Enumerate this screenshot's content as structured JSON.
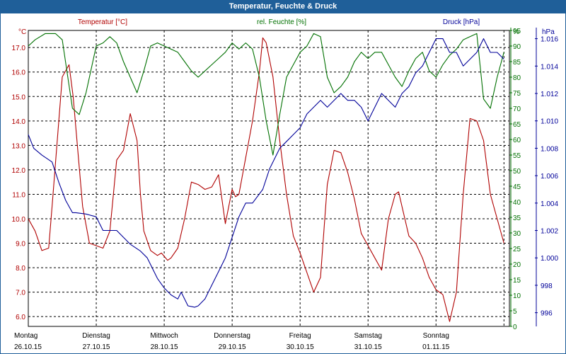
{
  "window": {
    "title": "Temperatur, Feuchte & Druck"
  },
  "colors": {
    "titlebar": "#1f5f99",
    "temperature": "#b00000",
    "humidity": "#007000",
    "pressure": "#000099",
    "grid": "#000000"
  },
  "chart_data": {
    "type": "line",
    "title": "Temperatur, Feuchte & Druck",
    "grid": true,
    "x_ticks": [
      {
        "day": "Montag",
        "date": "26.10.15"
      },
      {
        "day": "Dienstag",
        "date": "27.10.15"
      },
      {
        "day": "Mittwoch",
        "date": "28.10.15"
      },
      {
        "day": "Donnerstag",
        "date": "29.10.15"
      },
      {
        "day": "Freitag",
        "date": "30.10.15"
      },
      {
        "day": "Samstag",
        "date": "31.10.15"
      },
      {
        "day": "Sonntag",
        "date": "01.11.15"
      }
    ],
    "x_unit": "days",
    "x_range": [
      0,
      7.08
    ],
    "axes": {
      "temperature": {
        "label": "Temperatur [°C]",
        "unit": "°C",
        "ticks": [
          6.0,
          7.0,
          8.0,
          9.0,
          10.0,
          11.0,
          12.0,
          13.0,
          14.0,
          15.0,
          16.0,
          17.0
        ],
        "ylim": [
          5.6,
          17.7
        ],
        "position": "left"
      },
      "humidity": {
        "label": "rel. Feuchte [%]",
        "unit": "%",
        "ticks": [
          0,
          5,
          10,
          15,
          20,
          25,
          30,
          35,
          40,
          45,
          50,
          55,
          60,
          65,
          70,
          75,
          80,
          85,
          90,
          95
        ],
        "ylim": [
          0,
          95
        ],
        "position": "right-inner"
      },
      "pressure": {
        "label": "Druck [hPa]",
        "unit": "hPa",
        "ticks": [
          996,
          998,
          1.0,
          1.002,
          1.004,
          1.006,
          1.008,
          1.01,
          1.012,
          1.014,
          1.016
        ],
        "ylim": [
          995.0,
          1016.6
        ],
        "position": "right-outer"
      }
    },
    "series": [
      {
        "name": "Temperatur [°C]",
        "axis": "temperature",
        "x": [
          0,
          0.1,
          0.2,
          0.3,
          0.35,
          0.5,
          0.6,
          0.66,
          0.8,
          0.9,
          1.0,
          1.1,
          1.2,
          1.3,
          1.4,
          1.5,
          1.6,
          1.65,
          1.7,
          1.8,
          1.9,
          1.96,
          2.05,
          2.1,
          2.2,
          2.3,
          2.4,
          2.5,
          2.6,
          2.7,
          2.8,
          2.9,
          3.0,
          3.05,
          3.1,
          3.2,
          3.3,
          3.4,
          3.45,
          3.5,
          3.6,
          3.7,
          3.8,
          3.9,
          4.0,
          4.1,
          4.15,
          4.2,
          4.3,
          4.4,
          4.5,
          4.6,
          4.7,
          4.8,
          4.9,
          5.0,
          5.1,
          5.2,
          5.3,
          5.4,
          5.45,
          5.5,
          5.6,
          5.7,
          5.8,
          5.9,
          6.0,
          6.1,
          6.2,
          6.3,
          6.35,
          6.4,
          6.5,
          6.6,
          6.7,
          6.8,
          6.9,
          7.0
        ],
        "values": [
          10.0,
          9.5,
          8.7,
          8.8,
          10.5,
          15.8,
          16.3,
          15.0,
          10.5,
          9.0,
          8.9,
          8.8,
          9.5,
          12.4,
          12.8,
          14.3,
          13.2,
          11.0,
          9.5,
          8.7,
          8.5,
          8.6,
          8.3,
          8.4,
          8.8,
          10.0,
          11.5,
          11.4,
          11.2,
          11.3,
          11.8,
          9.8,
          11.2,
          10.9,
          11.0,
          12.5,
          14.0,
          16.0,
          17.4,
          17.2,
          15.8,
          13.2,
          11.0,
          9.3,
          8.6,
          7.8,
          7.4,
          7.0,
          7.6,
          11.4,
          12.8,
          12.7,
          11.9,
          10.8,
          9.4,
          8.9,
          8.4,
          7.9,
          10.0,
          11.0,
          11.1,
          10.5,
          9.3,
          9.0,
          8.4,
          7.6,
          7.1,
          6.9,
          5.8,
          7.0,
          9.0,
          11.0,
          14.1,
          14.0,
          13.2,
          11.0,
          10.0,
          9.0
        ]
      },
      {
        "name": "rel. Feuchte [%]",
        "axis": "humidity",
        "x": [
          0,
          0.1,
          0.25,
          0.4,
          0.5,
          0.65,
          0.75,
          0.85,
          1.0,
          1.1,
          1.2,
          1.3,
          1.4,
          1.5,
          1.6,
          1.7,
          1.8,
          1.9,
          2.0,
          2.1,
          2.2,
          2.3,
          2.4,
          2.5,
          2.6,
          2.7,
          2.75,
          2.8,
          2.9,
          3.0,
          3.1,
          3.2,
          3.3,
          3.4,
          3.5,
          3.6,
          3.7,
          3.8,
          3.9,
          4.0,
          4.1,
          4.2,
          4.3,
          4.4,
          4.5,
          4.6,
          4.7,
          4.8,
          4.9,
          5.0,
          5.1,
          5.2,
          5.3,
          5.4,
          5.5,
          5.6,
          5.7,
          5.8,
          5.9,
          6.0,
          6.1,
          6.2,
          6.3,
          6.4,
          6.5,
          6.6,
          6.7,
          6.8,
          6.9,
          7.0
        ],
        "values": [
          90,
          92,
          94,
          94,
          92,
          70,
          68,
          75,
          90,
          91,
          93,
          91,
          85,
          80,
          75,
          82,
          90,
          91,
          90,
          89,
          88,
          85,
          82,
          80,
          82,
          84,
          85,
          86,
          88,
          91,
          89,
          91,
          89,
          80,
          66,
          55,
          68,
          80,
          84,
          88,
          90,
          94,
          93,
          80,
          75,
          77,
          80,
          85,
          88,
          86,
          88,
          88,
          84,
          80,
          77,
          82,
          86,
          88,
          82,
          80,
          84,
          87,
          89,
          92,
          93,
          94,
          73,
          70,
          80,
          88
        ]
      },
      {
        "name": "Druck [hPa]",
        "axis": "pressure",
        "x": [
          0,
          0.08,
          0.2,
          0.35,
          0.45,
          0.55,
          0.65,
          0.7,
          0.85,
          1.0,
          1.05,
          1.1,
          1.2,
          1.3,
          1.4,
          1.5,
          1.65,
          1.75,
          1.8,
          1.9,
          2.0,
          2.1,
          2.2,
          2.25,
          2.35,
          2.45,
          2.5,
          2.6,
          2.7,
          2.8,
          2.9,
          3.0,
          3.1,
          3.2,
          3.3,
          3.45,
          3.55,
          3.7,
          3.8,
          3.9,
          4.0,
          4.1,
          4.2,
          4.3,
          4.4,
          4.5,
          4.6,
          4.7,
          4.8,
          4.9,
          5.0,
          5.1,
          5.2,
          5.3,
          5.4,
          5.5,
          5.6,
          5.7,
          5.8,
          5.9,
          6.0,
          6.1,
          6.2,
          6.3,
          6.4,
          6.5,
          6.6,
          6.7,
          6.8,
          6.9,
          7.0
        ],
        "values": [
          1009.0,
          1008.0,
          1007.5,
          1007.0,
          1005.5,
          1004.2,
          1003.3,
          1003.3,
          1003.2,
          1003.0,
          1002.5,
          1002.0,
          1002.0,
          1002.0,
          1001.5,
          1001.0,
          1000.5,
          1000.0,
          999.5,
          998.5,
          997.8,
          997.3,
          997.0,
          997.5,
          996.5,
          996.4,
          996.5,
          997.0,
          998.0,
          999.0,
          1000.0,
          1001.5,
          1003.0,
          1004.0,
          1004.0,
          1005.0,
          1006.5,
          1008.0,
          1008.5,
          1009.0,
          1009.5,
          1010.5,
          1011.0,
          1011.5,
          1011.0,
          1011.5,
          1012.0,
          1011.5,
          1011.5,
          1011.0,
          1010.0,
          1011.0,
          1012.0,
          1011.5,
          1011.0,
          1012.0,
          1012.5,
          1013.5,
          1014.0,
          1015.0,
          1016.0,
          1016.0,
          1015.0,
          1015.0,
          1014.0,
          1014.5,
          1015.0,
          1016.0,
          1015.0,
          1015.0,
          1014.5
        ]
      }
    ]
  }
}
